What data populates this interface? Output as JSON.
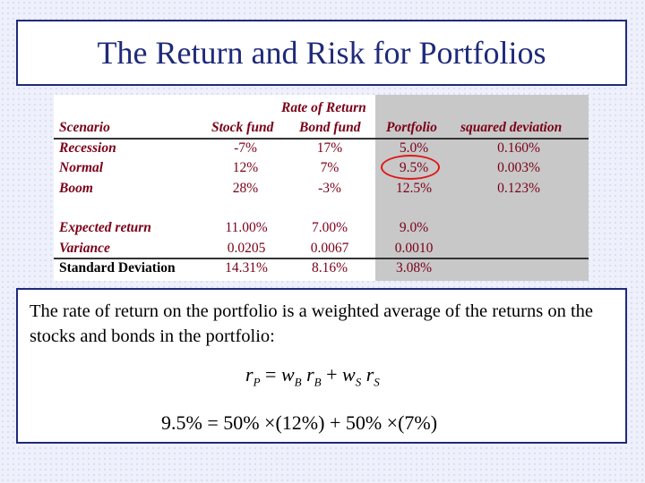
{
  "title": "The Return and Risk for Portfolios",
  "table": {
    "header_group": "Rate of Return",
    "col_scenario": "Scenario",
    "col_stock": "Stock fund",
    "col_bond": "Bond fund",
    "col_portfolio": "Portfolio",
    "col_sqdev": "squared deviation",
    "rows": [
      {
        "label": "Recession",
        "stock": "-7%",
        "bond": "17%",
        "portfolio": "5.0%",
        "sqdev": "0.160%"
      },
      {
        "label": "Normal",
        "stock": "12%",
        "bond": "7%",
        "portfolio": "9.5%",
        "sqdev": "0.003%"
      },
      {
        "label": "Boom",
        "stock": "28%",
        "bond": "-3%",
        "portfolio": "12.5%",
        "sqdev": "0.123%"
      }
    ],
    "summary": [
      {
        "label": "Expected return",
        "stock": "11.00%",
        "bond": "7.00%",
        "portfolio": "9.0%"
      },
      {
        "label": "Variance",
        "stock": "0.0205",
        "bond": "0.0067",
        "portfolio": "0.0010"
      },
      {
        "label": "Standard Deviation",
        "stock": "14.31%",
        "bond": "8.16%",
        "portfolio": "3.08%"
      }
    ]
  },
  "explanation": "The rate of return on the portfolio is a weighted average of the returns on the stocks and bonds in the portfolio:",
  "formula": {
    "r": "r",
    "sub_p": "P",
    "eq": " = ",
    "w": "w",
    "sub_b": "B",
    "sub_s": "S",
    "plus": " + ",
    "numeric": "9.5% = 50% ×(12%) + 50% ×(7%)"
  },
  "colors": {
    "title": "#1f2a7a",
    "table_text": "#7a0018",
    "highlight": "#e01818",
    "panel": "#c8c8c8"
  }
}
